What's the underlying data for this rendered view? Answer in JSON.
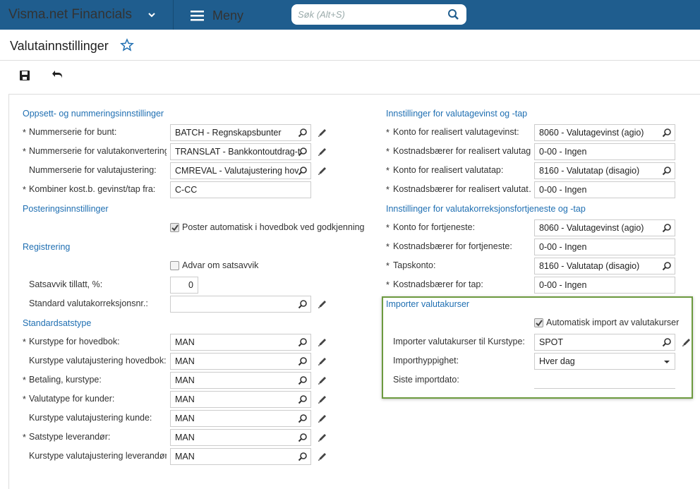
{
  "header": {
    "brand": "Visma.net Financials",
    "menu": "Meny",
    "search_placeholder": "Søk (Alt+S)"
  },
  "page": {
    "title": "Valutainnstillinger"
  },
  "columns": [
    {
      "sections": [
        {
          "title": "Oppsett- og nummeringsinnstillinger",
          "rows": [
            {
              "required": "*",
              "label": "Nummerserie for bunt:",
              "value": "BATCH - Regnskapsbunter",
              "kind": "lookup",
              "edit": true
            },
            {
              "required": "*",
              "label": "Nummerserie for valutakonvertering:",
              "value": "TRANSLAT - Bankkontoutdrag-t",
              "kind": "lookup",
              "edit": true
            },
            {
              "label": "Nummerserie for valutajustering:",
              "value": "CMREVAL - Valutajustering hov",
              "kind": "lookup",
              "edit": true
            },
            {
              "required": "*",
              "label": "Kombiner kost.b. gevinst/tap fra:",
              "value": "C-CC",
              "kind": "text"
            }
          ]
        },
        {
          "title": "Posteringsinnstillinger",
          "rows": [
            {
              "label": "Poster automatisk i hovedbok ved godkjenning",
              "kind": "checkbox",
              "checked": true
            }
          ]
        },
        {
          "title": "Registrering",
          "rows": [
            {
              "label": "Advar om satsavvik",
              "kind": "checkbox",
              "checked": false
            },
            {
              "label": "Satsavvik tillatt, %:",
              "value": 0,
              "kind": "number"
            },
            {
              "label": "Standard valutakorreksjonsnr.:",
              "kind": "lookup",
              "edit": true
            }
          ]
        },
        {
          "title": "Standardsatstype",
          "rows": [
            {
              "required": "*",
              "label": "Kurstype for hovedbok:",
              "value": "MAN",
              "kind": "lookup",
              "edit": true
            },
            {
              "label": "Kurstype valutajustering hovedbok:",
              "value": "MAN",
              "kind": "lookup",
              "edit": true
            },
            {
              "required": "*",
              "label": "Betaling, kurstype:",
              "value": "MAN",
              "kind": "lookup",
              "edit": true
            },
            {
              "required": "*",
              "label": "Valutatype for kunder:",
              "value": "MAN",
              "kind": "lookup",
              "edit": true
            },
            {
              "label": "Kurstype valutajustering kunde:",
              "value": "MAN",
              "kind": "lookup",
              "edit": true
            },
            {
              "required": "*",
              "label": "Satstype leverandør:",
              "value": "MAN",
              "kind": "lookup",
              "edit": true
            },
            {
              "label": "Kurstype valutajustering leverandør:",
              "value": "MAN",
              "kind": "lookup",
              "edit": true
            }
          ]
        }
      ]
    },
    {
      "sections": [
        {
          "title": "Innstillinger for valutagevinst og -tap",
          "rows": [
            {
              "required": "*",
              "label": "Konto for realisert valutagevinst:",
              "value": "8060 - Valutagevinst (agio)",
              "kind": "lookup"
            },
            {
              "required": "*",
              "label": "Kostnadsbærer for realisert valutag…",
              "value": "0-00 - Ingen",
              "kind": "text"
            },
            {
              "required": "*",
              "label": "Konto for realisert valutatap:",
              "value": "8160 - Valutatap (disagio)",
              "kind": "lookup"
            },
            {
              "required": "*",
              "label": "Kostnadsbærer for realisert valutat…",
              "value": "0-00 - Ingen",
              "kind": "text"
            }
          ]
        },
        {
          "title": "Innstillinger for valutakorreksjonsfortjeneste og -tap",
          "rows": [
            {
              "required": "*",
              "label": "Konto for fortjeneste:",
              "value": "8060 - Valutagevinst (agio)",
              "kind": "lookup"
            },
            {
              "required": "*",
              "label": "Kostnadsbærer for fortjeneste:",
              "value": "0-00 - Ingen",
              "kind": "text"
            },
            {
              "required": "*",
              "label": "Tapskonto:",
              "value": "8160 - Valutatap (disagio)",
              "kind": "lookup"
            },
            {
              "required": "*",
              "label": "Kostnadsbærer for tap:",
              "value": "0-00 - Ingen",
              "kind": "text"
            }
          ]
        },
        {
          "title": "Importer valutakurser",
          "highlight": true,
          "rows": [
            {
              "label": "Automatisk import av valutakurser",
              "kind": "checkbox",
              "checked": true
            },
            {
              "label": "Importer valutakurser til Kurstype:",
              "value": "SPOT",
              "kind": "lookup",
              "edit": true
            },
            {
              "label": "Importhyppighet:",
              "value": "Hver dag",
              "kind": "select"
            },
            {
              "label": "Siste importdato:",
              "kind": "readonly"
            }
          ]
        }
      ]
    }
  ]
}
